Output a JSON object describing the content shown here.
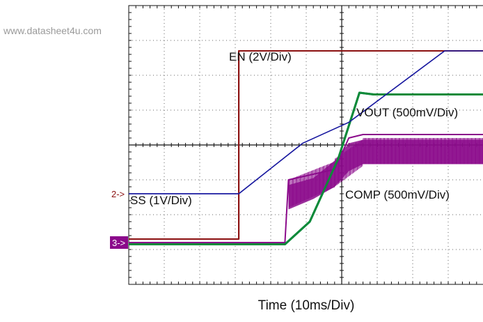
{
  "watermark": "www.datasheet4u.com",
  "chart_data": {
    "type": "line",
    "xlabel": "Time (10ms/Div)",
    "ylabel": "",
    "divisions": {
      "x": 10,
      "y": 8
    },
    "xlim": [
      -3,
      2
    ],
    "ylim": [
      -4,
      4
    ],
    "grid": true,
    "series": [
      {
        "name": "EN (2V/Div)",
        "label": "EN (2V/Div)",
        "color": "#8b1010",
        "points": [
          [
            -3,
            -2.7
          ],
          [
            -1.45,
            -2.7
          ],
          [
            -1.45,
            2.7
          ],
          [
            2,
            2.7
          ]
        ]
      },
      {
        "name": "SS (1V/Div)",
        "label": "SS (1V/Div)",
        "color": "#1a1aa0",
        "points": [
          [
            -3,
            -1.4
          ],
          [
            -1.45,
            -1.4
          ],
          [
            -0.55,
            0.05
          ],
          [
            0.1,
            0.65
          ],
          [
            1.45,
            2.7
          ],
          [
            2,
            2.7
          ]
        ]
      },
      {
        "name": "VOUT (500mV/Div)",
        "label": "VOUT (500mV/Div)",
        "color": "#0e8a3a",
        "points": [
          [
            -3,
            -2.85
          ],
          [
            -0.8,
            -2.85
          ],
          [
            -0.45,
            -2.2
          ],
          [
            -0.05,
            -0.4
          ],
          [
            0.25,
            1.5
          ],
          [
            0.45,
            1.45
          ],
          [
            2,
            1.45
          ]
        ]
      },
      {
        "name": "COMP (500mV/Div)",
        "label": "COMP (500mV/Div)",
        "color": "#8b0a8b",
        "points": [
          [
            -3,
            -2.8
          ],
          [
            -0.8,
            -2.8
          ],
          [
            -0.75,
            -1.0
          ],
          [
            -0.1,
            -0.7
          ],
          [
            0.1,
            0.2
          ],
          [
            0.3,
            0.3
          ],
          [
            2,
            0.3
          ]
        ]
      }
    ],
    "markers": [
      {
        "text": "2->",
        "y": -1.4,
        "color": "#8b1010"
      },
      {
        "text": "3->",
        "y": -2.8,
        "color": "#8b0a8b"
      }
    ]
  }
}
